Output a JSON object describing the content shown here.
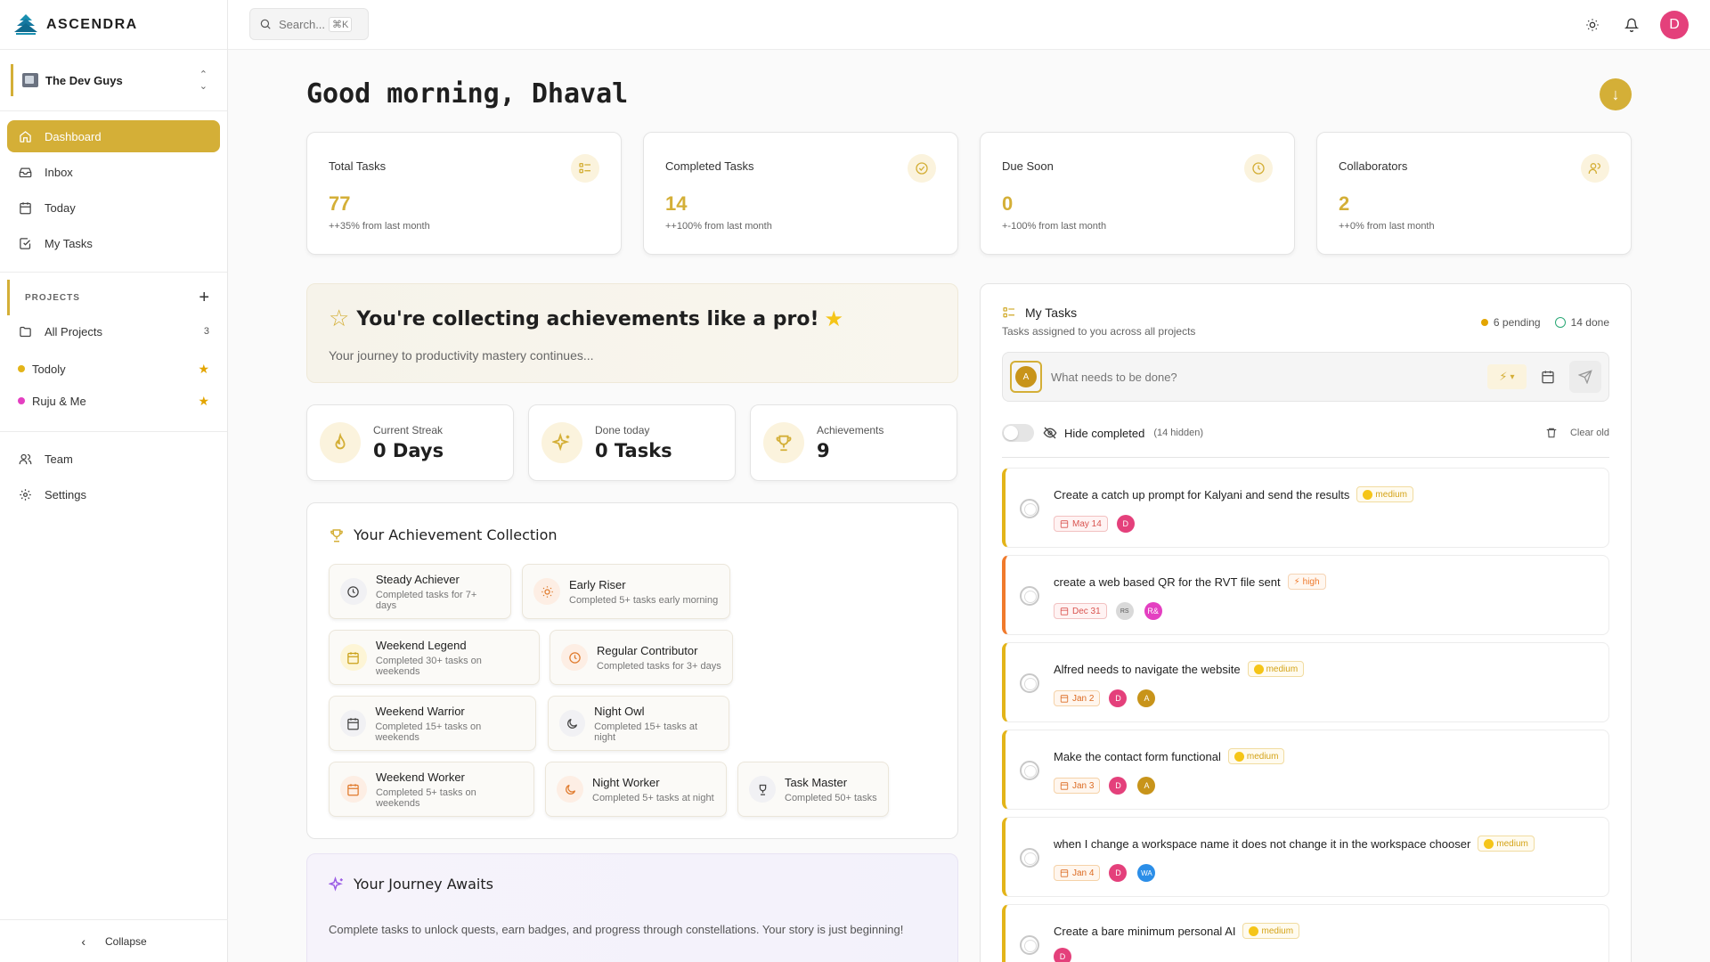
{
  "app": {
    "name": "ASCENDRA"
  },
  "workspace": {
    "name": "The Dev Guys"
  },
  "nav": [
    {
      "label": "Dashboard",
      "icon": "home-icon",
      "active": true
    },
    {
      "label": "Inbox",
      "icon": "inbox-icon"
    },
    {
      "label": "Today",
      "icon": "calendar-icon"
    },
    {
      "label": "My Tasks",
      "icon": "check-square-icon"
    }
  ],
  "projects": {
    "heading": "PROJECTS",
    "all_label": "All Projects",
    "all_count": "3",
    "items": [
      {
        "name": "Todoly",
        "color": "#e3b419"
      },
      {
        "name": "Ruju & Me",
        "color": "#e43fc1"
      }
    ]
  },
  "nav_bottom": [
    {
      "label": "Team",
      "icon": "users-icon"
    },
    {
      "label": "Settings",
      "icon": "gear-icon"
    }
  ],
  "collapse_label": "Collapse",
  "search": {
    "placeholder": "Search...",
    "shortcut": "⌘K"
  },
  "user": {
    "initial": "D"
  },
  "greeting": {
    "prefix": "Good morning,",
    "name": "Dhaval"
  },
  "stats": [
    {
      "label": "Total Tasks",
      "value": "77",
      "change": "++35% from last month",
      "icon": "list-icon"
    },
    {
      "label": "Completed Tasks",
      "value": "14",
      "change": "++100% from last month",
      "icon": "check-circle-icon"
    },
    {
      "label": "Due Soon",
      "value": "0",
      "change": "+-100% from last month",
      "icon": "clock-icon"
    },
    {
      "label": "Collaborators",
      "value": "2",
      "change": "++0% from last month",
      "icon": "users-icon"
    }
  ],
  "hero": {
    "title": "You're collecting achievements like a pro!",
    "subtitle": "Your journey to productivity mastery continues..."
  },
  "mini_stats": [
    {
      "label": "Current Streak",
      "value": "0 Days",
      "icon": "flame-icon"
    },
    {
      "label": "Done today",
      "value": "0 Tasks",
      "icon": "sparkles-icon"
    },
    {
      "label": "Achievements",
      "value": "9",
      "icon": "trophy-icon"
    }
  ],
  "collection": {
    "title": "Your Achievement Collection",
    "badges": [
      {
        "title": "Steady Achiever",
        "desc": "Completed tasks for 7+ days",
        "icon": "clock-icon"
      },
      {
        "title": "Early Riser",
        "desc": "Completed 5+ tasks early morning",
        "icon": "sun-icon"
      },
      {
        "title": "Weekend Legend",
        "desc": "Completed 30+ tasks on weekends",
        "icon": "calendar-icon"
      },
      {
        "title": "Regular Contributor",
        "desc": "Completed tasks for 3+ days",
        "icon": "clock-icon"
      },
      {
        "title": "Weekend Warrior",
        "desc": "Completed 15+ tasks on weekends",
        "icon": "calendar-icon"
      },
      {
        "title": "Night Owl",
        "desc": "Completed 15+ tasks at night",
        "icon": "moon-icon"
      },
      {
        "title": "Weekend Worker",
        "desc": "Completed 5+ tasks on weekends",
        "icon": "calendar-icon"
      },
      {
        "title": "Night Worker",
        "desc": "Completed 5+ tasks at night",
        "icon": "moon-icon"
      },
      {
        "title": "Task Master",
        "desc": "Completed 50+ tasks",
        "icon": "trophy-icon"
      }
    ]
  },
  "journey": {
    "title": "Your Journey Awaits",
    "text": "Complete tasks to unlock quests, earn badges, and progress through constellations. Your story is just beginning!"
  },
  "my_tasks": {
    "title": "My Tasks",
    "subtitle": "Tasks assigned to you across all projects",
    "pending": "6 pending",
    "done": "14 done",
    "input_placeholder": "What needs to be done?",
    "input_avatar": "A",
    "hide_label": "Hide completed",
    "hidden_count": "(14 hidden)",
    "clear_label": "Clear old",
    "tasks": [
      {
        "title": "Create a catch up prompt for Kalyani and send the results",
        "priority": "medium",
        "date": "May 14",
        "assignees": [
          {
            "i": "D",
            "c": "#e4407b"
          }
        ]
      },
      {
        "title": "create a web based QR for the RVT file sent",
        "priority": "high",
        "date": "Dec 31",
        "assignees": [
          {
            "i": "RS",
            "c": "#d9d9d9"
          },
          {
            "i": "R&",
            "c": "#e43fc1"
          }
        ]
      },
      {
        "title": "Alfred needs to navigate the website",
        "priority": "medium",
        "date": "Jan 2",
        "assignees": [
          {
            "i": "D",
            "c": "#e4407b"
          },
          {
            "i": "A",
            "c": "#c8941a"
          }
        ]
      },
      {
        "title": "Make the contact form functional",
        "priority": "medium",
        "date": "Jan 3",
        "assignees": [
          {
            "i": "D",
            "c": "#e4407b"
          },
          {
            "i": "A",
            "c": "#c8941a"
          }
        ]
      },
      {
        "title": "when I change a workspace name it does not change it in the workspace chooser",
        "priority": "medium",
        "date": "Jan 4",
        "assignees": [
          {
            "i": "D",
            "c": "#e4407b"
          },
          {
            "i": "WA",
            "c": "#2b8ee8"
          }
        ]
      },
      {
        "title": "Create a bare minimum personal AI",
        "priority": "medium",
        "date": "",
        "assignees": [
          {
            "i": "D",
            "c": "#e4407b"
          }
        ]
      }
    ]
  }
}
